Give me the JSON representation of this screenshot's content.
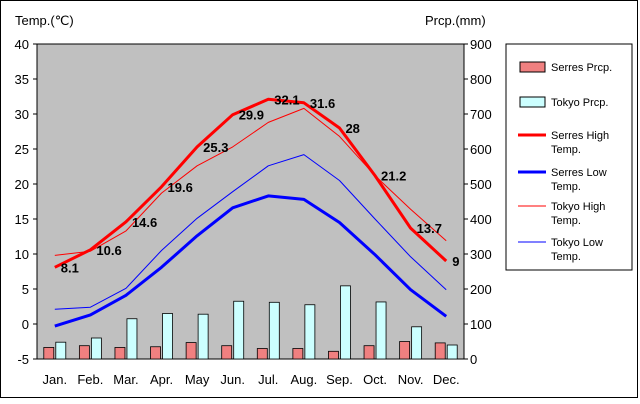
{
  "chart_data": {
    "type": "bar+line",
    "y_left_label": "Temp.(℃)",
    "y_right_label": "Prcp.(mm)",
    "y_left_ticks": [
      "40",
      "35",
      "30",
      "25",
      "20",
      "15",
      "10",
      "5",
      "0",
      "-5"
    ],
    "y_right_ticks": [
      "900",
      "800",
      "700",
      "600",
      "500",
      "400",
      "300",
      "200",
      "100",
      "0"
    ],
    "ylim_left": [
      -5,
      40
    ],
    "ylim_right": [
      0,
      900
    ],
    "grid": false,
    "categories": [
      "Jan.",
      "Feb.",
      "Mar.",
      "Apr.",
      "May",
      "Jun.",
      "Jul.",
      "Aug.",
      "Sep.",
      "Oct.",
      "Nov.",
      "Dec."
    ],
    "bars": [
      {
        "name": "Serres Prcp.",
        "color": "#f08080",
        "values": [
          33,
          38,
          33,
          35,
          47,
          38,
          30,
          30,
          22,
          38,
          50,
          46
        ]
      },
      {
        "name": "Tokyo Prcp.",
        "color": "#ccffff",
        "values": [
          48,
          60,
          115,
          130,
          128,
          165,
          162,
          155,
          209,
          163,
          92,
          40
        ]
      }
    ],
    "lines": [
      {
        "name": "Serres High Temp.",
        "color": "#ff0000",
        "width": 3,
        "values": [
          8.1,
          10.6,
          14.6,
          19.6,
          25.3,
          29.9,
          32.1,
          31.6,
          28,
          21.2,
          13.7,
          9
        ]
      },
      {
        "name": "Serres Low Temp.",
        "color": "#0000ff",
        "width": 3,
        "values": [
          -0.3,
          1.3,
          4.1,
          8.1,
          12.6,
          16.6,
          18.3,
          17.8,
          14.5,
          9.9,
          4.9,
          1.1
        ]
      },
      {
        "name": "Tokyo High Temp.",
        "color": "#ff0000",
        "width": 1,
        "values": [
          9.8,
          10.4,
          13.3,
          18.7,
          22.6,
          25.3,
          28.8,
          30.8,
          26.8,
          21.2,
          16.4,
          11.9
        ]
      },
      {
        "name": "Tokyo Low Temp.",
        "color": "#0000ff",
        "width": 1,
        "values": [
          2.1,
          2.4,
          5.1,
          10.5,
          15.1,
          18.9,
          22.6,
          24.2,
          20.5,
          15.0,
          9.6,
          4.9
        ]
      }
    ],
    "data_labels": [
      "8.1",
      "10.6",
      "14.6",
      "19.6",
      "25.3",
      "29.9",
      "32.1",
      "31.6",
      "28",
      "21.2",
      "13.7",
      "9"
    ],
    "legend": {
      "position": "right",
      "entries": [
        {
          "kind": "bar",
          "color": "#f08080",
          "lines": [
            "Serres Prcp."
          ]
        },
        {
          "kind": "bar",
          "color": "#ccffff",
          "lines": [
            "Tokyo Prcp."
          ]
        },
        {
          "kind": "line",
          "color": "#ff0000",
          "width": 3,
          "lines": [
            "Serres High",
            "Temp."
          ]
        },
        {
          "kind": "line",
          "color": "#0000ff",
          "width": 3,
          "lines": [
            "Serres Low",
            "Temp."
          ]
        },
        {
          "kind": "line",
          "color": "#ff0000",
          "width": 1,
          "lines": [
            "Tokyo High",
            "Temp."
          ]
        },
        {
          "kind": "line",
          "color": "#0000ff",
          "width": 1,
          "lines": [
            "Tokyo Low",
            "Temp."
          ]
        }
      ]
    },
    "colors": {
      "plot_bg": "#c0c0c0",
      "bar_border": "#000000"
    }
  }
}
